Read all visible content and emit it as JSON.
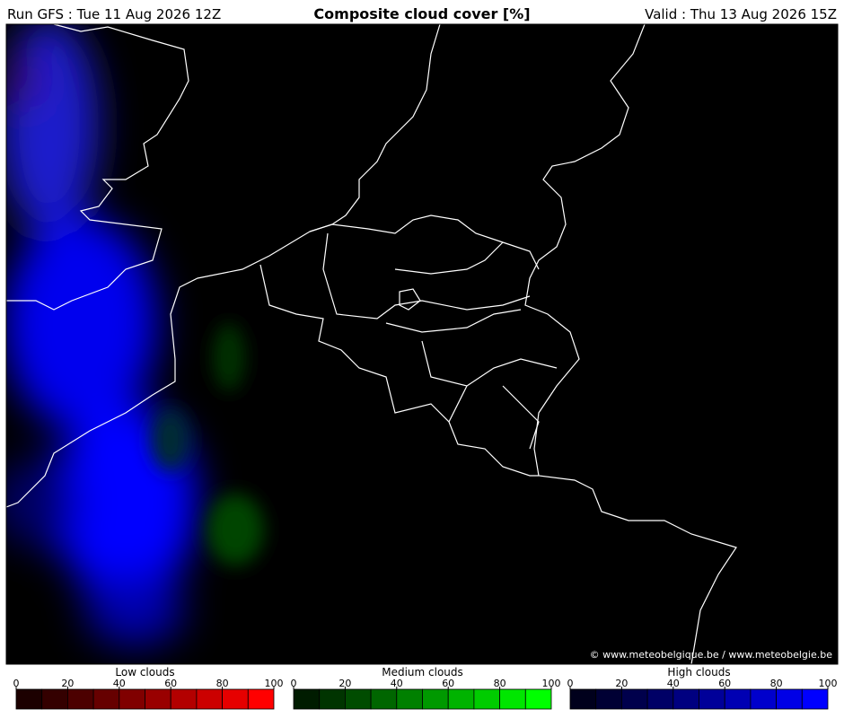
{
  "header": {
    "run": "Run GFS : Tue 11 Aug 2026 12Z",
    "title": "Composite cloud cover [%]",
    "valid": "Valid : Thu 13 Aug 2026 15Z"
  },
  "map": {
    "credit": "© www.meteobelgique.be / www.meteobelgie.be"
  },
  "legends": [
    {
      "label": "Low clouds",
      "ticks": [
        0,
        20,
        40,
        60,
        80,
        100
      ],
      "colors": [
        "#1c0000",
        "#340000",
        "#4c0000",
        "#660000",
        "#800000",
        "#990000",
        "#b30000",
        "#cc0000",
        "#e60000",
        "#ff0000"
      ]
    },
    {
      "label": "Medium clouds",
      "ticks": [
        0,
        20,
        40,
        60,
        80,
        100
      ],
      "colors": [
        "#001c00",
        "#003400",
        "#004c00",
        "#006600",
        "#008000",
        "#009900",
        "#00b300",
        "#00cc00",
        "#00e600",
        "#00ff00"
      ]
    },
    {
      "label": "High clouds",
      "ticks": [
        0,
        20,
        40,
        60,
        80,
        100
      ],
      "colors": [
        "#00001c",
        "#000034",
        "#00004c",
        "#000066",
        "#000080",
        "#000099",
        "#0000b3",
        "#0000cc",
        "#0000e6",
        "#0000ff"
      ]
    }
  ]
}
